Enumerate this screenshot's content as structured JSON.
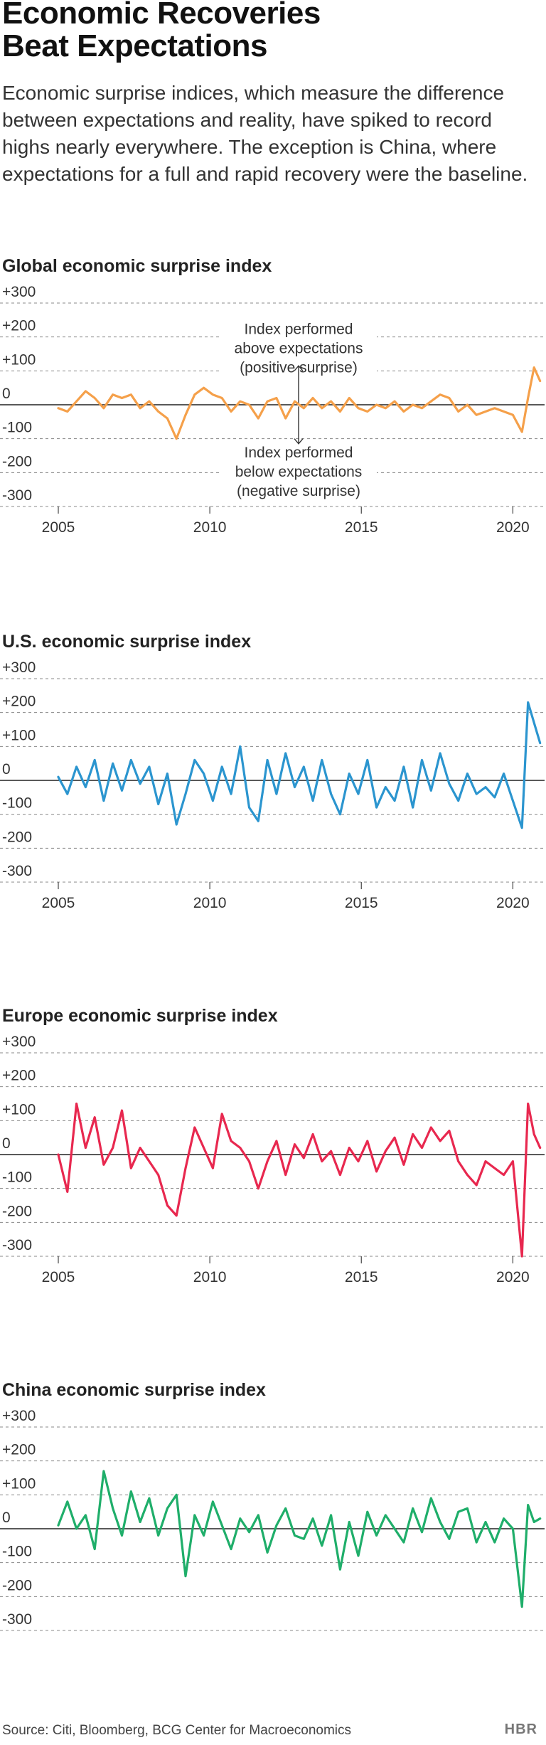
{
  "headline": {
    "line1": "Economic Recoveries",
    "line2": "Beat Expectations"
  },
  "dek": "Economic surprise indices, which measure the difference between expectations and reality, have spiked to record highs nearly everywhere. The exception is China, where expectations for a full and rapid recovery were the baseline.",
  "chart_data": [
    {
      "type": "line",
      "title": "Global economic surprise index",
      "color": "#f5a04a",
      "x": [
        2005.0,
        2005.3,
        2005.6,
        2005.9,
        2006.2,
        2006.5,
        2006.8,
        2007.1,
        2007.4,
        2007.7,
        2008.0,
        2008.3,
        2008.6,
        2008.9,
        2009.2,
        2009.5,
        2009.8,
        2010.1,
        2010.4,
        2010.7,
        2011.0,
        2011.3,
        2011.6,
        2011.9,
        2012.2,
        2012.5,
        2012.8,
        2013.1,
        2013.4,
        2013.7,
        2014.0,
        2014.3,
        2014.6,
        2014.9,
        2015.2,
        2015.5,
        2015.8,
        2016.1,
        2016.4,
        2016.7,
        2017.0,
        2017.3,
        2017.6,
        2017.9,
        2018.2,
        2018.5,
        2018.8,
        2019.1,
        2019.4,
        2019.7,
        2020.0,
        2020.3,
        2020.5,
        2020.7,
        2020.9
      ],
      "values": [
        -10,
        -20,
        10,
        40,
        20,
        -10,
        30,
        20,
        30,
        -10,
        10,
        -20,
        -40,
        -100,
        -30,
        30,
        50,
        30,
        20,
        -20,
        10,
        0,
        -40,
        10,
        20,
        -40,
        10,
        -10,
        20,
        -10,
        10,
        -20,
        20,
        -10,
        -20,
        0,
        -10,
        10,
        -20,
        0,
        -10,
        10,
        30,
        20,
        -20,
        0,
        -30,
        -20,
        -10,
        -20,
        -30,
        -80,
        20,
        110,
        70
      ],
      "ylim": [
        -300,
        300
      ],
      "yticks": [
        "+300",
        "+200",
        "+100",
        "0",
        "-100",
        "-200",
        "-300"
      ],
      "xticks": [
        "2005",
        "2010",
        "2015",
        "2020"
      ],
      "annotation_above": [
        "Index performed",
        "above expectations",
        "(positive surprise)"
      ],
      "annotation_below": [
        "Index performed",
        "below expectations",
        "(negative surprise)"
      ]
    },
    {
      "type": "line",
      "title": "U.S. economic surprise index",
      "color": "#2b95cf",
      "x": [
        2005.0,
        2005.3,
        2005.6,
        2005.9,
        2006.2,
        2006.5,
        2006.8,
        2007.1,
        2007.4,
        2007.7,
        2008.0,
        2008.3,
        2008.6,
        2008.9,
        2009.2,
        2009.5,
        2009.8,
        2010.1,
        2010.4,
        2010.7,
        2011.0,
        2011.3,
        2011.6,
        2011.9,
        2012.2,
        2012.5,
        2012.8,
        2013.1,
        2013.4,
        2013.7,
        2014.0,
        2014.3,
        2014.6,
        2014.9,
        2015.2,
        2015.5,
        2015.8,
        2016.1,
        2016.4,
        2016.7,
        2017.0,
        2017.3,
        2017.6,
        2017.9,
        2018.2,
        2018.5,
        2018.8,
        2019.1,
        2019.4,
        2019.7,
        2020.0,
        2020.3,
        2020.5,
        2020.7,
        2020.9
      ],
      "values": [
        10,
        -40,
        40,
        -20,
        60,
        -60,
        50,
        -30,
        60,
        -10,
        40,
        -70,
        20,
        -130,
        -40,
        60,
        20,
        -60,
        40,
        -40,
        100,
        -80,
        -120,
        60,
        -40,
        80,
        -20,
        40,
        -60,
        60,
        -40,
        -100,
        20,
        -40,
        60,
        -80,
        -20,
        -60,
        40,
        -80,
        60,
        -30,
        80,
        -10,
        -60,
        20,
        -40,
        -20,
        -50,
        20,
        -60,
        -140,
        230,
        170,
        110
      ],
      "ylim": [
        -300,
        300
      ],
      "yticks": [
        "+300",
        "+200",
        "+100",
        "0",
        "-100",
        "-200",
        "-300"
      ],
      "xticks": [
        "2005",
        "2010",
        "2015",
        "2020"
      ]
    },
    {
      "type": "line",
      "title": "Europe economic surprise index",
      "color": "#e8284f",
      "x": [
        2005.0,
        2005.3,
        2005.6,
        2005.9,
        2006.2,
        2006.5,
        2006.8,
        2007.1,
        2007.4,
        2007.7,
        2008.0,
        2008.3,
        2008.6,
        2008.9,
        2009.2,
        2009.5,
        2009.8,
        2010.1,
        2010.4,
        2010.7,
        2011.0,
        2011.3,
        2011.6,
        2011.9,
        2012.2,
        2012.5,
        2012.8,
        2013.1,
        2013.4,
        2013.7,
        2014.0,
        2014.3,
        2014.6,
        2014.9,
        2015.2,
        2015.5,
        2015.8,
        2016.1,
        2016.4,
        2016.7,
        2017.0,
        2017.3,
        2017.6,
        2017.9,
        2018.2,
        2018.5,
        2018.8,
        2019.1,
        2019.4,
        2019.7,
        2020.0,
        2020.3,
        2020.5,
        2020.7,
        2020.9
      ],
      "values": [
        0,
        -110,
        150,
        20,
        110,
        -30,
        20,
        130,
        -40,
        20,
        -20,
        -60,
        -150,
        -180,
        -40,
        80,
        20,
        -40,
        120,
        40,
        20,
        -20,
        -100,
        -20,
        40,
        -60,
        30,
        -10,
        60,
        -20,
        10,
        -60,
        20,
        -20,
        40,
        -50,
        10,
        50,
        -30,
        60,
        20,
        80,
        40,
        70,
        -20,
        -60,
        -90,
        -20,
        -40,
        -60,
        -20,
        -300,
        150,
        60,
        20
      ],
      "ylim": [
        -300,
        300
      ],
      "yticks": [
        "+300",
        "+200",
        "+100",
        "0",
        "-100",
        "-200",
        "-300"
      ],
      "xticks": [
        "2005",
        "2010",
        "2015",
        "2020"
      ]
    },
    {
      "type": "line",
      "title": "China economic surprise index",
      "color": "#1fae6a",
      "x": [
        2005.0,
        2005.3,
        2005.6,
        2005.9,
        2006.2,
        2006.5,
        2006.8,
        2007.1,
        2007.4,
        2007.7,
        2008.0,
        2008.3,
        2008.6,
        2008.9,
        2009.2,
        2009.5,
        2009.8,
        2010.1,
        2010.4,
        2010.7,
        2011.0,
        2011.3,
        2011.6,
        2011.9,
        2012.2,
        2012.5,
        2012.8,
        2013.1,
        2013.4,
        2013.7,
        2014.0,
        2014.3,
        2014.6,
        2014.9,
        2015.2,
        2015.5,
        2015.8,
        2016.1,
        2016.4,
        2016.7,
        2017.0,
        2017.3,
        2017.6,
        2017.9,
        2018.2,
        2018.5,
        2018.8,
        2019.1,
        2019.4,
        2019.7,
        2020.0,
        2020.3,
        2020.5,
        2020.7,
        2020.9
      ],
      "values": [
        10,
        80,
        0,
        40,
        -60,
        170,
        60,
        -20,
        110,
        20,
        90,
        -20,
        60,
        100,
        -140,
        40,
        -20,
        80,
        10,
        -60,
        30,
        -10,
        40,
        -70,
        10,
        60,
        -20,
        -30,
        30,
        -50,
        40,
        -120,
        20,
        -80,
        50,
        -20,
        40,
        0,
        -40,
        60,
        -10,
        90,
        20,
        -30,
        50,
        60,
        -40,
        20,
        -40,
        30,
        0,
        -230,
        70,
        20,
        30
      ],
      "ylim": [
        -300,
        300
      ],
      "yticks": [
        "+300",
        "+200",
        "+100",
        "0",
        "-100",
        "-200",
        "-300"
      ],
      "xticks": []
    }
  ],
  "footer": {
    "source": "Source: Citi, Bloomberg, BCG Center for Macroeconomics",
    "brand": "HBR"
  }
}
